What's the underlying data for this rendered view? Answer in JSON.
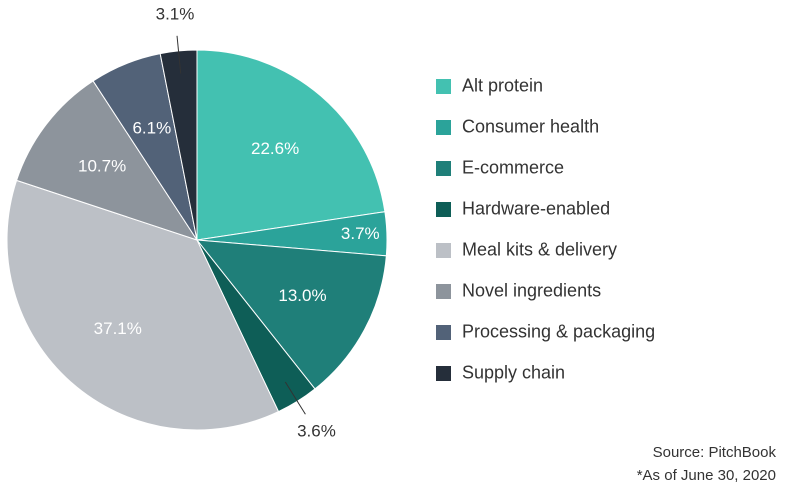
{
  "chart_data": {
    "type": "pie",
    "categories": [
      "Alt protein",
      "Consumer health",
      "E-commerce",
      "Hardware-enabled",
      "Meal kits & delivery",
      "Novel ingredients",
      "Processing & packaging",
      "Supply chain"
    ],
    "values": [
      22.6,
      3.7,
      13.0,
      3.6,
      37.1,
      10.7,
      6.1,
      3.1
    ],
    "labels": [
      "22.6%",
      "3.7%",
      "13.0%",
      "3.6%",
      "37.1%",
      "10.7%",
      "6.1%",
      "3.1%"
    ],
    "colors": [
      "#43c1b1",
      "#2ba39a",
      "#1f7f79",
      "#0e5e57",
      "#bcc0c6",
      "#8d949c",
      "#526278",
      "#252e3a"
    ],
    "label_colors": [
      "#ffffff",
      "#ffffff",
      "#ffffff",
      "#333333",
      "#ffffff",
      "#ffffff",
      "#ffffff",
      "#333333"
    ],
    "outside_labels": [
      false,
      false,
      false,
      true,
      false,
      false,
      false,
      true
    ],
    "start_angle_deg": 0,
    "direction": "clockwise",
    "legend_position": "right",
    "title": "",
    "xlabel": "",
    "ylabel": ""
  },
  "footer": {
    "source": "Source: PitchBook",
    "note": "*As of June 30, 2020"
  }
}
